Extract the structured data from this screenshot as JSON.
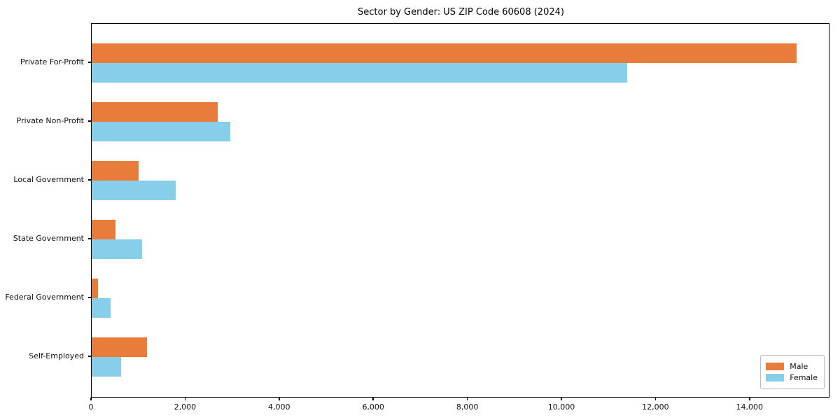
{
  "chart_data": {
    "type": "bar",
    "orientation": "horizontal",
    "title": "Sector by Gender: US ZIP Code 60608 (2024)",
    "xlabel": "",
    "ylabel": "",
    "categories": [
      "Private For-Profit",
      "Private Non-Profit",
      "Local Government",
      "State Government",
      "Federal Government",
      "Self-Employed"
    ],
    "series": [
      {
        "name": "Male",
        "color": "#e87d3b",
        "values": [
          14980,
          2680,
          1000,
          500,
          135,
          1170
        ]
      },
      {
        "name": "Female",
        "color": "#87ceeb",
        "values": [
          11380,
          2950,
          1790,
          1070,
          395,
          625
        ]
      }
    ],
    "xlim": [
      0,
      15700
    ],
    "xticks": [
      0,
      2000,
      4000,
      6000,
      8000,
      10000,
      12000,
      14000
    ],
    "xtick_labels": [
      "0",
      "2,000",
      "4,000",
      "6,000",
      "8,000",
      "10,000",
      "12,000",
      "14,000"
    ],
    "grid": false,
    "legend_position": "lower right",
    "frame": true
  }
}
